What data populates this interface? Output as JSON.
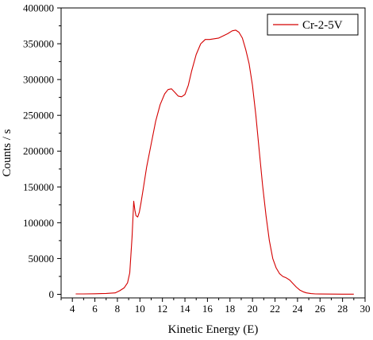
{
  "chart_data": {
    "type": "line",
    "title": "",
    "xlabel": "Kinetic Energy (E)",
    "ylabel": "Counts / s",
    "xlim": [
      3,
      30
    ],
    "ylim": [
      -5000,
      400000
    ],
    "x_ticks": [
      4,
      6,
      8,
      10,
      12,
      14,
      16,
      18,
      20,
      22,
      24,
      26,
      28,
      30
    ],
    "x_minor_step": 1,
    "y_ticks": [
      0,
      50000,
      100000,
      150000,
      200000,
      250000,
      300000,
      350000,
      400000
    ],
    "y_minor_step": 25000,
    "x_tick_labels": [
      "4",
      "6",
      "8",
      "10",
      "12",
      "14",
      "16",
      "18",
      "20",
      "22",
      "24",
      "26",
      "28",
      "30"
    ],
    "y_tick_labels": [
      "0",
      "50000",
      "100000",
      "150000",
      "200000",
      "250000",
      "300000",
      "350000",
      "400000"
    ],
    "grid": false,
    "legend": "top-right",
    "line_color": "#d40000",
    "series": [
      {
        "name": "Cr-2-5V",
        "x": [
          4.3,
          5.0,
          6.0,
          7.0,
          7.8,
          8.2,
          8.6,
          8.9,
          9.1,
          9.3,
          9.45,
          9.55,
          9.65,
          9.8,
          9.95,
          10.1,
          10.3,
          10.6,
          11.0,
          11.4,
          11.8,
          12.2,
          12.5,
          12.8,
          13.1,
          13.4,
          13.7,
          14.0,
          14.3,
          14.6,
          15.0,
          15.4,
          15.8,
          16.2,
          16.6,
          17.0,
          17.4,
          17.8,
          18.2,
          18.5,
          18.8,
          19.1,
          19.4,
          19.7,
          20.0,
          20.3,
          20.6,
          20.9,
          21.2,
          21.5,
          21.8,
          22.1,
          22.4,
          22.7,
          23.0,
          23.3,
          23.6,
          23.9,
          24.2,
          24.5,
          24.8,
          25.2,
          25.6,
          26.0,
          27.0,
          28.0,
          29.0
        ],
        "values": [
          500,
          500,
          800,
          1200,
          2000,
          5000,
          9000,
          16000,
          30000,
          80000,
          130000,
          118000,
          110000,
          108000,
          115000,
          128000,
          148000,
          178000,
          210000,
          242000,
          265000,
          280000,
          286000,
          287000,
          282000,
          277000,
          276000,
          279000,
          292000,
          312000,
          335000,
          350000,
          356000,
          356000,
          357000,
          358000,
          361000,
          364000,
          368000,
          369000,
          366000,
          358000,
          342000,
          322000,
          292000,
          250000,
          200000,
          152000,
          110000,
          75000,
          50000,
          37000,
          29000,
          25000,
          23000,
          20000,
          15000,
          10000,
          6000,
          3500,
          2000,
          1000,
          600,
          400,
          300,
          250,
          200
        ]
      }
    ]
  }
}
